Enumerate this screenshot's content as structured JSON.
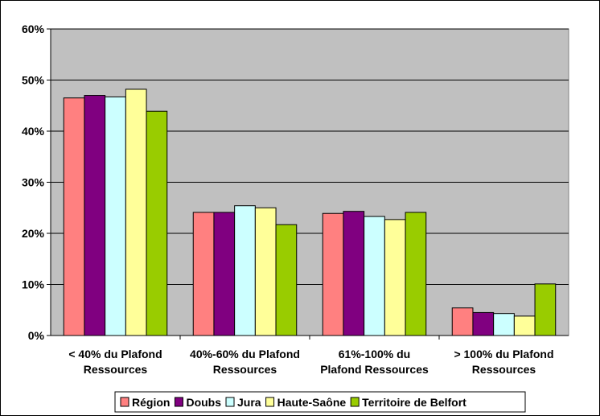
{
  "chart_data": {
    "type": "bar",
    "categories": [
      [
        "< 40% du Plafond",
        "Ressources"
      ],
      [
        "40%-60% du Plafond",
        "Ressources"
      ],
      [
        "61%-100% du",
        "Plafond Ressources"
      ],
      [
        "> 100% du Plafond",
        "Ressources"
      ]
    ],
    "series": [
      {
        "name": "Région",
        "color": "#FF8080",
        "values": [
          46.5,
          24.1,
          23.9,
          5.4
        ]
      },
      {
        "name": "Doubs",
        "color": "#800080",
        "values": [
          47.0,
          24.1,
          24.3,
          4.5
        ]
      },
      {
        "name": "Jura",
        "color": "#CCFFFF",
        "values": [
          46.7,
          25.4,
          23.3,
          4.3
        ]
      },
      {
        "name": "Haute-Saône",
        "color": "#FFFF99",
        "values": [
          48.2,
          25.0,
          22.7,
          3.8
        ]
      },
      {
        "name": "Territoire de Belfort",
        "color": "#99CC00",
        "values": [
          43.9,
          21.7,
          24.1,
          10.1
        ]
      }
    ],
    "y_ticks": [
      "0%",
      "10%",
      "20%",
      "30%",
      "40%",
      "50%",
      "60%"
    ],
    "ylim": [
      0,
      60
    ],
    "ylabel": "",
    "xlabel": "",
    "title": "",
    "grid": true,
    "legend_position": "bottom",
    "plot_background": "#C0C0C0"
  }
}
